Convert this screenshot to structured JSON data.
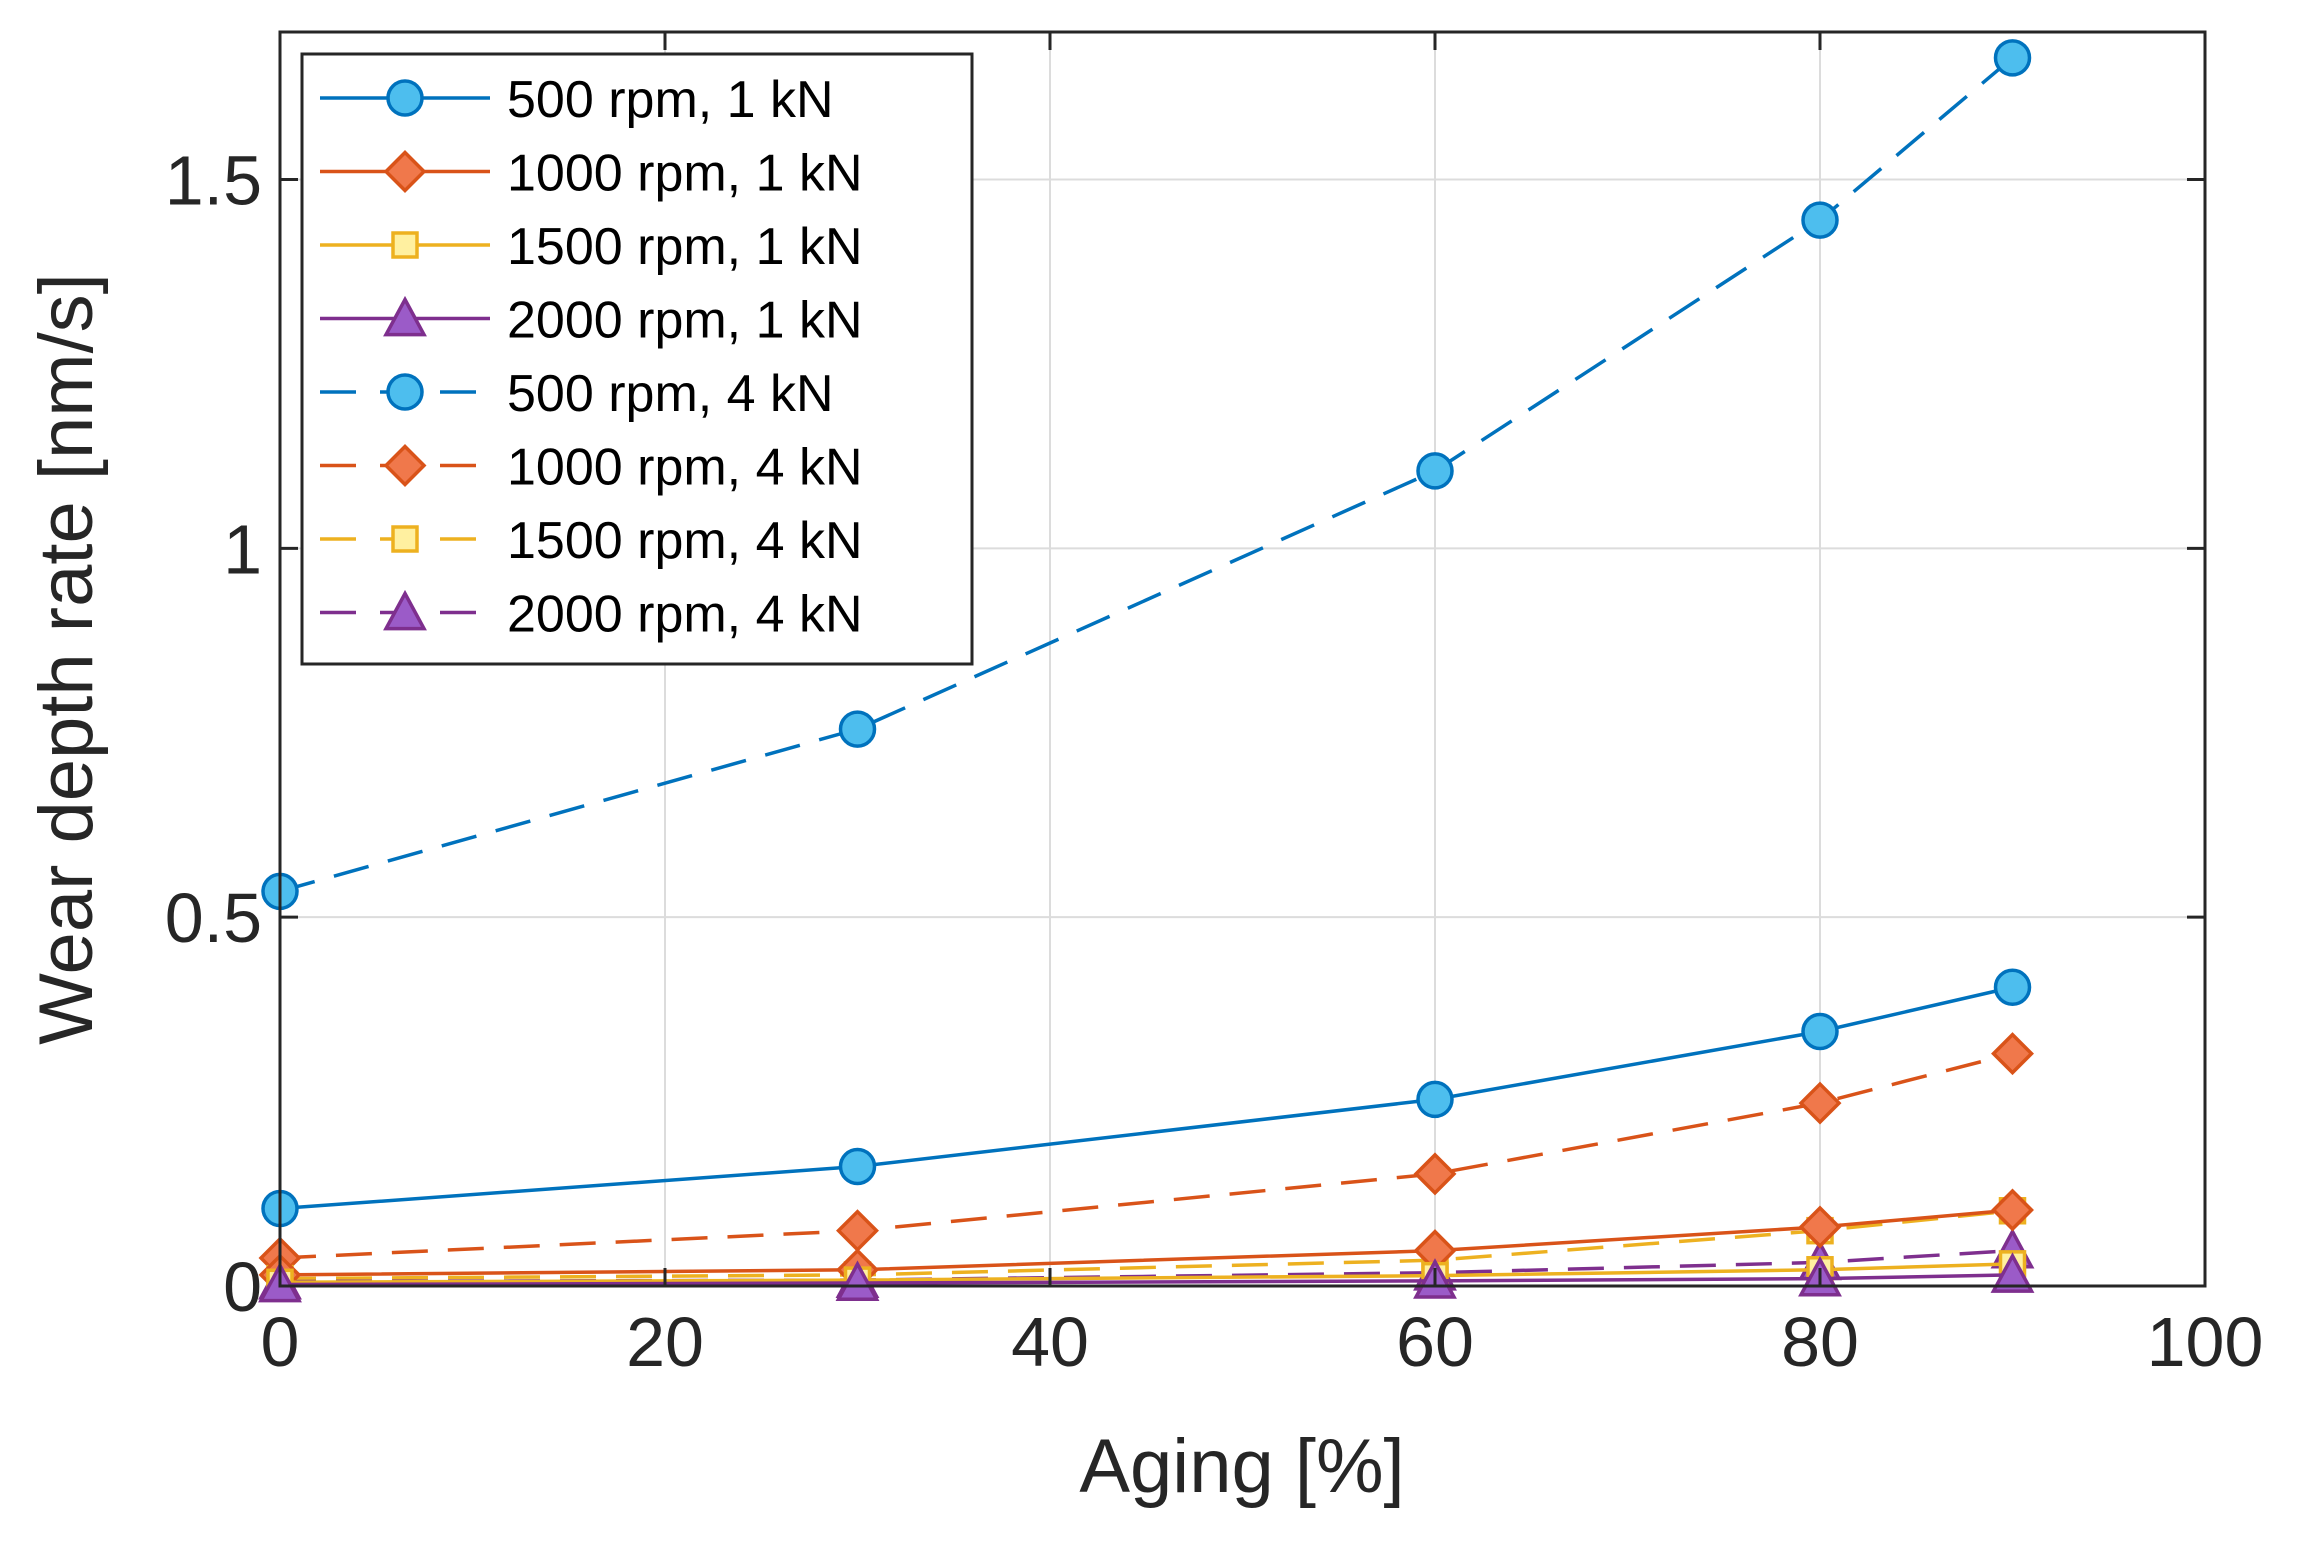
{
  "chart_data": {
    "type": "line",
    "title": "",
    "xlabel": "Aging [%]",
    "ylabel": "Wear depth rate [nm/s]",
    "xlim": [
      0,
      100
    ],
    "ylim": [
      0,
      1.7
    ],
    "x_ticks": [
      0,
      20,
      40,
      60,
      80,
      100
    ],
    "x_tick_labels": [
      "0",
      "20",
      "40",
      "60",
      "80",
      "100"
    ],
    "y_ticks": [
      0,
      0.5,
      1,
      1.5
    ],
    "y_tick_labels": [
      "0",
      "0.5",
      "1",
      "1.5"
    ],
    "grid": true,
    "legend_position": "top-left",
    "x": [
      0,
      30,
      60,
      80,
      90
    ],
    "series": [
      {
        "name": "500 rpm, 1 kN",
        "values": [
          0.105,
          0.162,
          0.253,
          0.345,
          0.405
        ],
        "color": "#0072BD",
        "marker_fill": "#4DBEEE",
        "marker": "circle",
        "dash": "solid"
      },
      {
        "name": "1000 rpm, 1 kN",
        "values": [
          0.015,
          0.022,
          0.048,
          0.08,
          0.103
        ],
        "color": "#D95319",
        "marker_fill": "#F0784B",
        "marker": "diamond",
        "dash": "solid"
      },
      {
        "name": "1500 rpm, 1 kN",
        "values": [
          0.005,
          0.008,
          0.014,
          0.022,
          0.03
        ],
        "color": "#EDB120",
        "marker_fill": "#FFF0A0",
        "marker": "square",
        "dash": "solid"
      },
      {
        "name": "2000 rpm, 1 kN",
        "values": [
          0.002,
          0.004,
          0.007,
          0.01,
          0.015
        ],
        "color": "#7E2F8E",
        "marker_fill": "#9B5BC8",
        "marker": "triangle",
        "dash": "solid"
      },
      {
        "name": "500 rpm, 4 kN",
        "values": [
          0.535,
          0.755,
          1.105,
          1.445,
          1.665
        ],
        "color": "#0072BD",
        "marker_fill": "#4DBEEE",
        "marker": "circle",
        "dash": "dashed"
      },
      {
        "name": "1000 rpm, 4 kN",
        "values": [
          0.038,
          0.075,
          0.152,
          0.248,
          0.315
        ],
        "color": "#D95319",
        "marker_fill": "#F0784B",
        "marker": "diamond",
        "dash": "dashed"
      },
      {
        "name": "1500 rpm, 4 kN",
        "values": [
          0.01,
          0.015,
          0.035,
          0.075,
          0.102
        ],
        "color": "#EDB120",
        "marker_fill": "#FFF0A0",
        "marker": "square",
        "dash": "dashed"
      },
      {
        "name": "2000 rpm, 4 kN",
        "values": [
          0.006,
          0.008,
          0.018,
          0.032,
          0.048
        ],
        "color": "#7E2F8E",
        "marker_fill": "#9B5BC8",
        "marker": "triangle",
        "dash": "dashed"
      }
    ]
  }
}
